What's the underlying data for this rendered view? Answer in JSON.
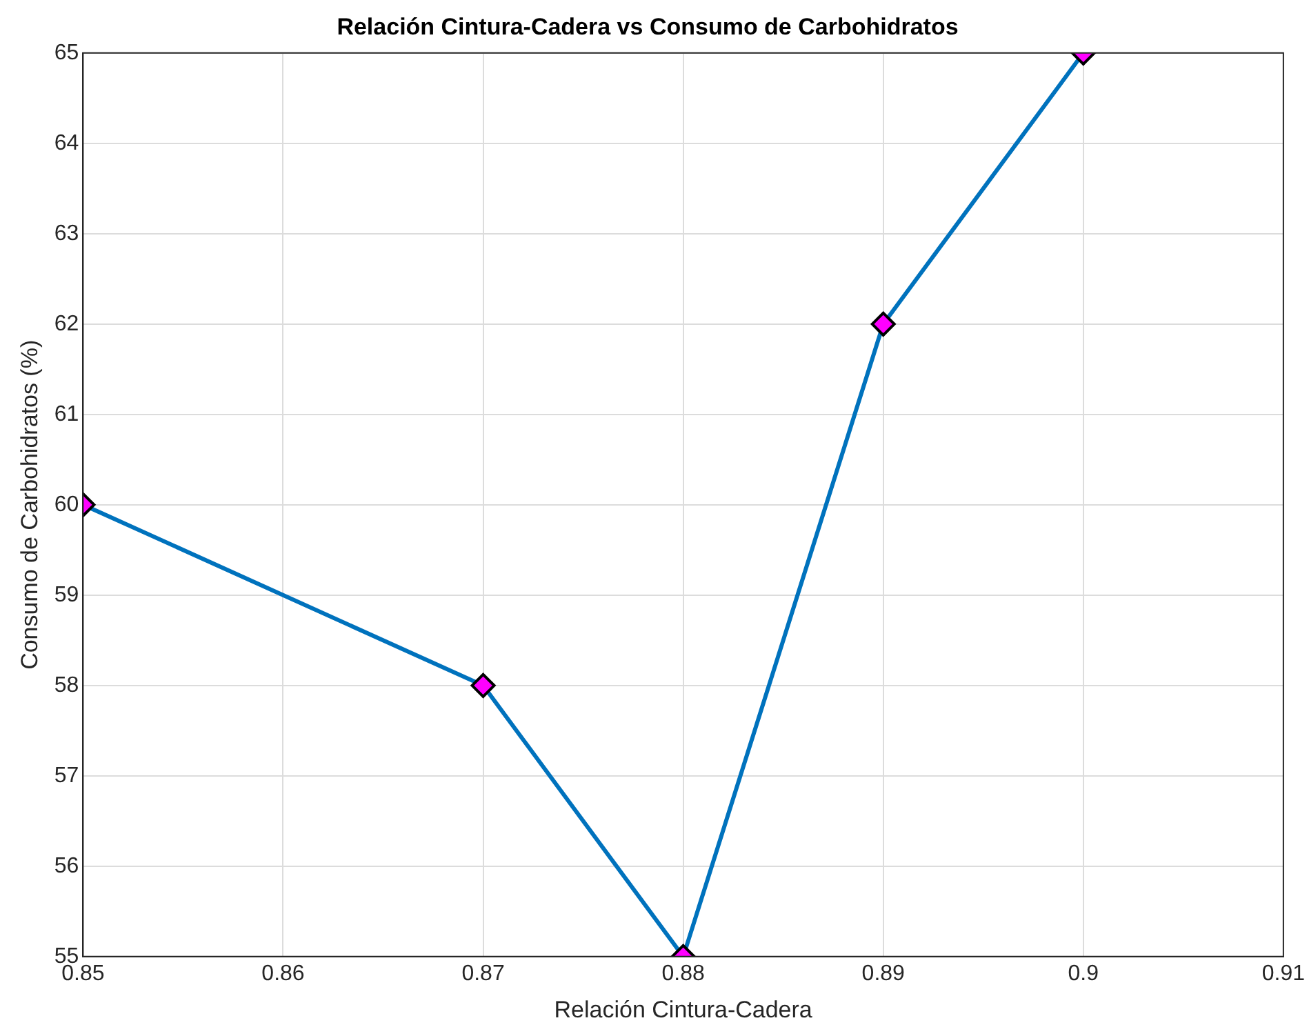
{
  "chart_data": {
    "type": "line",
    "title": "Relación Cintura-Cadera vs Consumo de Carbohidratos",
    "xlabel": "Relación Cintura-Cadera",
    "ylabel": "Consumo de Carbohidratos (%)",
    "x": [
      0.85,
      0.87,
      0.88,
      0.89,
      0.9
    ],
    "series": [
      {
        "color": "#0072bd",
        "values": [
          60,
          58,
          55,
          62,
          65
        ]
      }
    ],
    "xlim": [
      0.85,
      0.91
    ],
    "xticks": [
      0.85,
      0.86,
      0.87,
      0.88,
      0.89,
      0.9,
      0.91
    ],
    "ylim": [
      55,
      65
    ],
    "yticks": [
      55,
      56,
      57,
      58,
      59,
      60,
      61,
      62,
      63,
      64,
      65
    ],
    "grid": true,
    "marker": "diamond",
    "line_style": "solid"
  }
}
